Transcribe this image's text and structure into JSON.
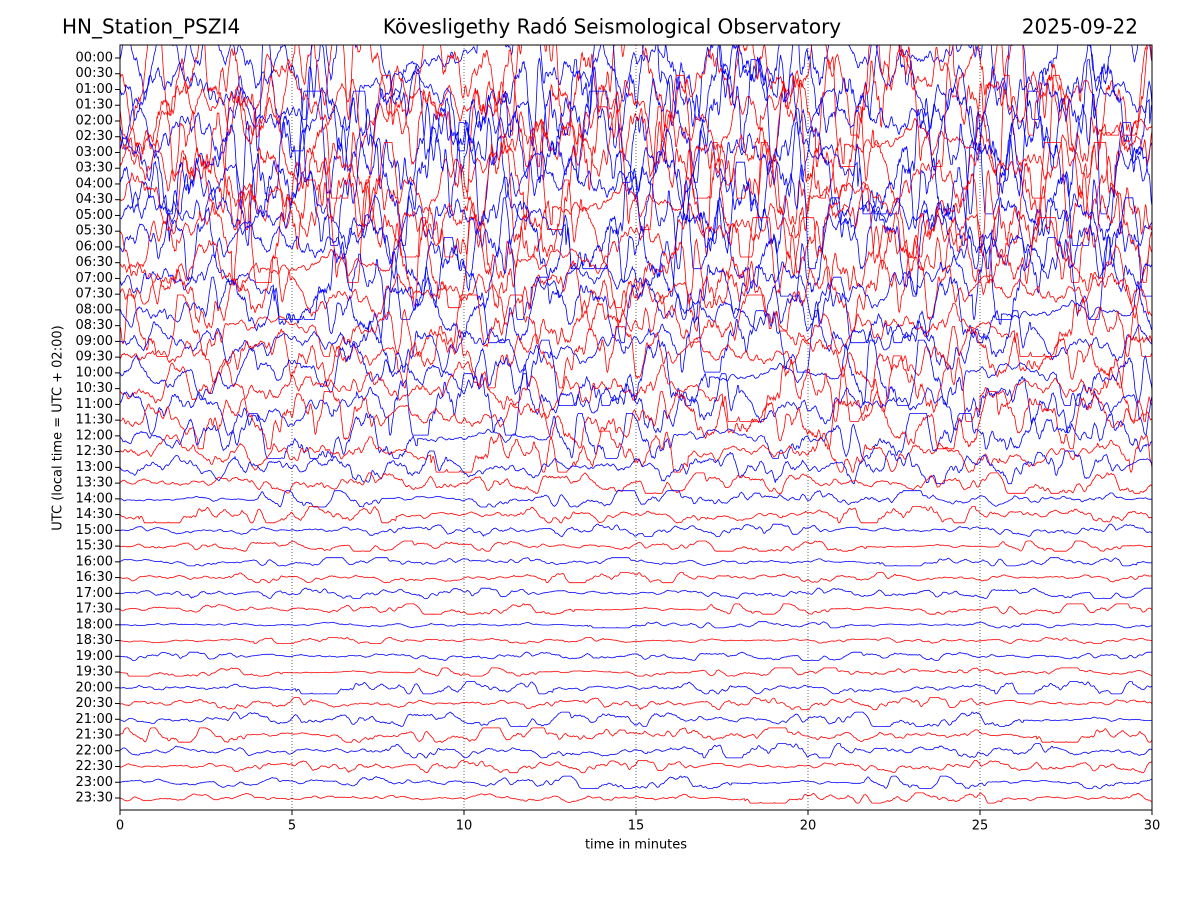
{
  "chart_data": {
    "type": "helicorder",
    "title_left": "HN_Station_PSZI4",
    "title": "Kövesligethy Radó Seismological Observatory",
    "title_right": "2025-09-22",
    "x_label": "time in minutes",
    "y_label": "UTC (local time = UTC + 02:00)",
    "categories": [
      "00:00",
      "00:30",
      "01:00",
      "01:30",
      "02:00",
      "02:30",
      "03:00",
      "03:30",
      "04:00",
      "04:30",
      "05:00",
      "05:30",
      "06:00",
      "06:30",
      "07:00",
      "07:30",
      "08:00",
      "08:30",
      "09:00",
      "09:30",
      "10:00",
      "10:30",
      "11:00",
      "11:30",
      "12:00",
      "12:30",
      "13:00",
      "13:30",
      "14:00",
      "14:30",
      "15:00",
      "15:30",
      "16:00",
      "16:30",
      "17:00",
      "17:30",
      "18:00",
      "18:30",
      "19:00",
      "19:30",
      "20:00",
      "20:30",
      "21:00",
      "21:30",
      "22:00",
      "22:30",
      "23:00",
      "23:30"
    ],
    "values": [
      3,
      3,
      3,
      3,
      3,
      3,
      3,
      3,
      3,
      2.8,
      2.6,
      2.5,
      2.4,
      2.2,
      2,
      1.8,
      1.6,
      1.5,
      1.5,
      1.5,
      1.6,
      1.6,
      1.5,
      1.4,
      1.1,
      1,
      0.8,
      0.5,
      0.4,
      0.4,
      0.3,
      0.25,
      0.2,
      0.25,
      0.25,
      0.25,
      0.15,
      0.15,
      0.2,
      0.2,
      0.3,
      0.3,
      0.35,
      0.35,
      0.35,
      0.3,
      0.3,
      0.25
    ],
    "colors": [
      "#0000ff",
      "#ff0000"
    ],
    "xlim": [
      0,
      30
    ],
    "xticks": [
      0,
      5,
      10,
      15,
      20,
      25,
      30
    ],
    "grid": true
  }
}
